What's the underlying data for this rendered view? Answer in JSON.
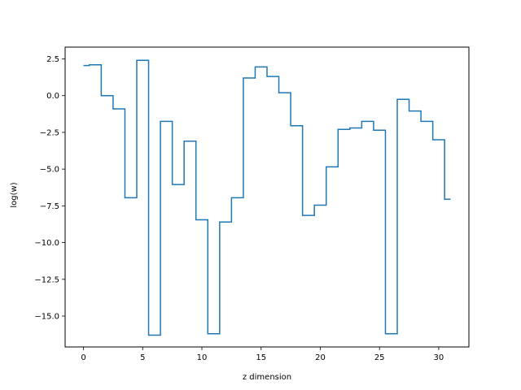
{
  "chart_data": {
    "type": "line",
    "drawstyle": "steps-mid",
    "title": "",
    "xlabel": "z dimension",
    "ylabel": "log(w)",
    "xlim": [
      -1.55,
      32.55
    ],
    "ylim": [
      -17.1,
      3.3
    ],
    "xticks": [
      0,
      5,
      10,
      15,
      20,
      25,
      30
    ],
    "yticks": [
      2.5,
      0.0,
      -2.5,
      -5.0,
      -7.5,
      -10.0,
      -12.5,
      -15.0
    ],
    "ytick_labels": [
      "2.5",
      "0.0",
      "−2.5",
      "−5.0",
      "−7.5",
      "−10.0",
      "−12.5",
      "−15.0"
    ],
    "grid": false,
    "line_color": "#1f77b4",
    "series": [
      {
        "x": [
          0,
          1,
          2,
          3,
          4,
          5,
          6,
          7,
          8,
          9,
          10,
          11,
          12,
          13,
          14,
          15,
          16,
          17,
          18,
          19,
          20,
          21,
          22,
          23,
          24,
          25,
          26,
          27,
          28,
          29,
          30,
          31
        ],
        "values": [
          2.05,
          2.1,
          0.0,
          -0.9,
          -6.95,
          2.4,
          -16.3,
          -1.75,
          -6.05,
          -3.1,
          -8.45,
          -16.2,
          -8.6,
          -6.95,
          1.2,
          1.95,
          1.3,
          0.2,
          -2.05,
          -8.15,
          -7.45,
          -4.85,
          -2.3,
          -2.2,
          -1.75,
          -2.35,
          -16.2,
          -0.25,
          -1.05,
          -1.75,
          -3.0,
          -7.05
        ]
      }
    ]
  }
}
